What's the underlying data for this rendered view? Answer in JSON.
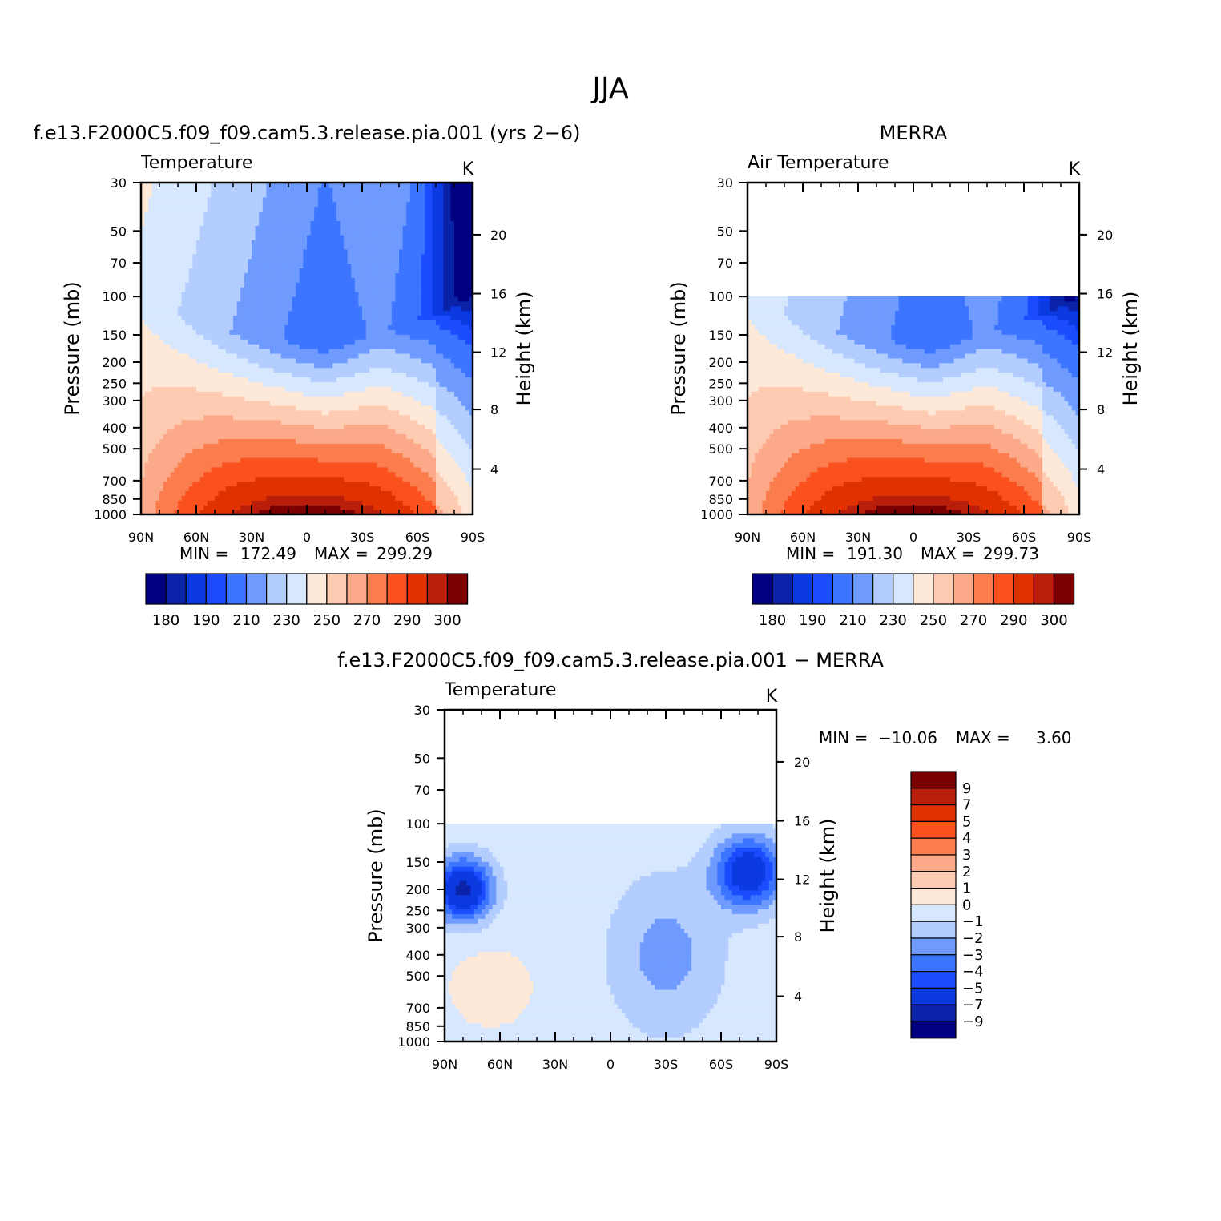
{
  "figure": {
    "title": "JJA"
  },
  "colors": {
    "abs_levels": [
      "#000080",
      "#0a23a8",
      "#0a3ae0",
      "#1b4dff",
      "#3c75ff",
      "#6f9bff",
      "#b2cdfe",
      "#d7e8fe",
      "#fee8d7",
      "#fdcbb1",
      "#fca98a",
      "#fb7c4c",
      "#fb511e",
      "#e03200",
      "#b91e0a",
      "#7a0000"
    ],
    "diff_levels": [
      "#000080",
      "#0a23a8",
      "#0a3ae0",
      "#1b4dff",
      "#3c75ff",
      "#6f9bff",
      "#b2cdfe",
      "#d7e8fe",
      "#fee8d7",
      "#fdcbb1",
      "#fca98a",
      "#fb7c4c",
      "#fb511e",
      "#e03200",
      "#b91e0a",
      "#7a0000"
    ],
    "missing": "#ffffff"
  },
  "axes_common": {
    "pressure_ticks": [
      "30",
      "50",
      "70",
      "100",
      "150",
      "200",
      "250",
      "300",
      "400",
      "500",
      "700",
      "850",
      "1000"
    ],
    "pressure_values": [
      30,
      50,
      70,
      100,
      150,
      200,
      250,
      300,
      400,
      500,
      700,
      850,
      1000
    ],
    "lat_ticks": [
      "90N",
      "60N",
      "30N",
      "0",
      "30S",
      "60S",
      "90S"
    ],
    "lat_values": [
      90,
      60,
      30,
      0,
      -30,
      -60,
      -90
    ],
    "height_ticks": [
      "4",
      "8",
      "12",
      "16",
      "20"
    ],
    "height_pressure_equiv": [
      620,
      330,
      180,
      97,
      52
    ],
    "left_label": "Pressure (mb)",
    "right_label": "Height (km)"
  },
  "chart_data": [
    {
      "id": "model",
      "type": "heatmap",
      "title": "f.e13.F2000C5.f09_f09.cam5.3.release.pia.001 (yrs 2−6)",
      "variable": "Temperature",
      "units": "K",
      "xlabel": "",
      "ylabel": "Pressure (mb)",
      "y2label": "Height (km)",
      "x_range": [
        90,
        -90
      ],
      "y_range_mb": [
        1000,
        30
      ],
      "y_scale": "log",
      "stats": {
        "min_label": "MIN = ",
        "min": "172.49",
        "max_label": "MAX = ",
        "max": "299.29"
      },
      "colorbar": {
        "orientation": "horizontal",
        "tick_labels": [
          "180",
          "190",
          "210",
          "230",
          "250",
          "270",
          "290",
          "300"
        ],
        "levels": [
          175,
          180,
          185,
          190,
          200,
          210,
          220,
          230,
          240,
          250,
          260,
          270,
          280,
          290,
          295,
          300
        ]
      },
      "data_top_mb": 30
    },
    {
      "id": "obs",
      "type": "heatmap",
      "title": "MERRA",
      "variable": "Air Temperature",
      "units": "K",
      "xlabel": "",
      "ylabel": "Pressure (mb)",
      "y2label": "Height (km)",
      "x_range": [
        90,
        -90
      ],
      "y_range_mb": [
        1000,
        30
      ],
      "y_scale": "log",
      "stats": {
        "min_label": "MIN = ",
        "min": "191.30",
        "max_label": "MAX = ",
        "max": "299.73"
      },
      "colorbar": {
        "orientation": "horizontal",
        "tick_labels": [
          "180",
          "190",
          "210",
          "230",
          "250",
          "270",
          "290",
          "300"
        ],
        "levels": [
          175,
          180,
          185,
          190,
          200,
          210,
          220,
          230,
          240,
          250,
          260,
          270,
          280,
          290,
          295,
          300
        ]
      },
      "data_top_mb": 100
    },
    {
      "id": "diff",
      "type": "heatmap",
      "title": "f.e13.F2000C5.f09_f09.cam5.3.release.pia.001 − MERRA",
      "variable": "Temperature",
      "units": "K",
      "xlabel": "",
      "ylabel": "Pressure (mb)",
      "y2label": "Height (km)",
      "x_range": [
        90,
        -90
      ],
      "y_range_mb": [
        1000,
        30
      ],
      "y_scale": "log",
      "stats": {
        "min_label": "MIN = ",
        "min": "−10.06",
        "max_label": "MAX = ",
        "max": "3.60"
      },
      "colorbar": {
        "orientation": "vertical",
        "tick_labels": [
          "9",
          "7",
          "5",
          "4",
          "3",
          "2",
          "1",
          "0",
          "−1",
          "−2",
          "−3",
          "−4",
          "−5",
          "−7",
          "−9"
        ],
        "levels": [
          -9,
          -7,
          -5,
          -4,
          -3,
          -2,
          -1,
          0,
          1,
          2,
          3,
          4,
          5,
          7,
          9
        ]
      },
      "data_top_mb": 100
    }
  ]
}
